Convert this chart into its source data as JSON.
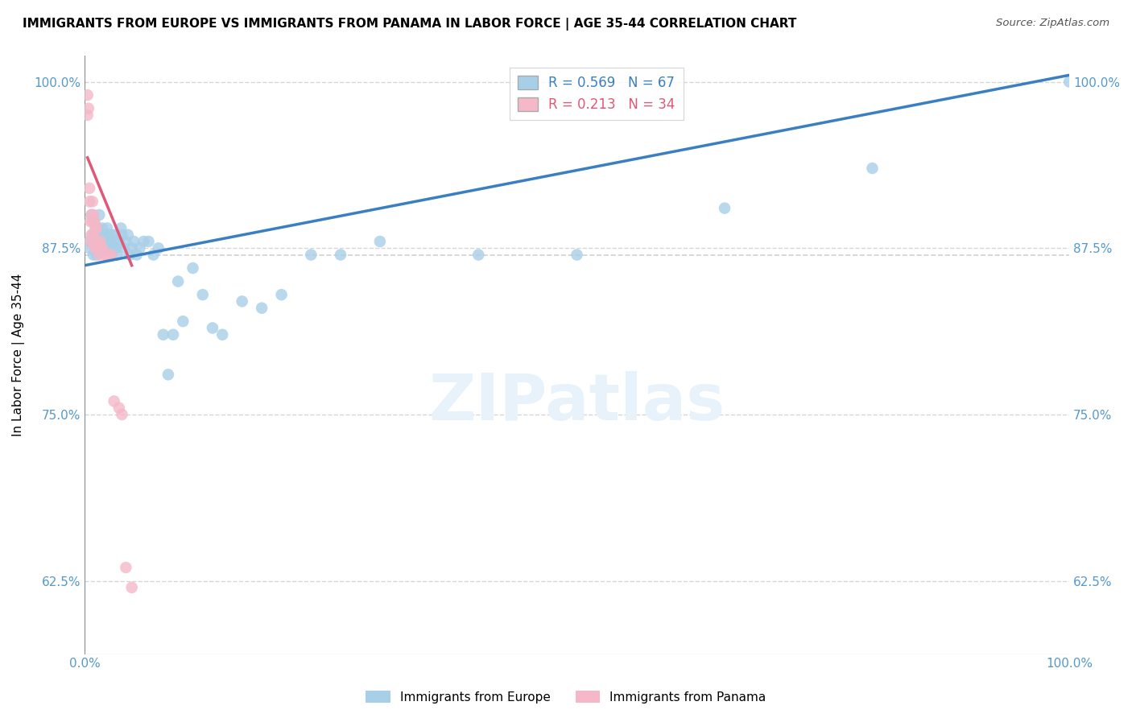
{
  "title": "IMMIGRANTS FROM EUROPE VS IMMIGRANTS FROM PANAMA IN LABOR FORCE | AGE 35-44 CORRELATION CHART",
  "source": "Source: ZipAtlas.com",
  "ylabel": "In Labor Force | Age 35-44",
  "xlim": [
    0.0,
    1.0
  ],
  "ylim": [
    0.57,
    1.02
  ],
  "ytick_positions": [
    0.625,
    0.75,
    0.875,
    1.0
  ],
  "ytick_labels": [
    "62.5%",
    "75.0%",
    "87.5%",
    "100.0%"
  ],
  "legend_europe_label": "Immigrants from Europe",
  "legend_panama_label": "Immigrants from Panama",
  "europe_R": "0.569",
  "europe_N": "67",
  "panama_R": "0.213",
  "panama_N": "34",
  "europe_color": "#a8cfe8",
  "panama_color": "#f4b8c8",
  "europe_line_color": "#3a7fc1",
  "panama_line_color": "#e05878",
  "background_color": "#ffffff",
  "grid_color": "#cccccc",
  "europe_scatter_x": [
    0.005,
    0.005,
    0.007,
    0.008,
    0.009,
    0.01,
    0.01,
    0.011,
    0.012,
    0.012,
    0.013,
    0.014,
    0.015,
    0.015,
    0.016,
    0.017,
    0.018,
    0.019,
    0.02,
    0.02,
    0.021,
    0.022,
    0.023,
    0.024,
    0.025,
    0.026,
    0.027,
    0.028,
    0.03,
    0.031,
    0.032,
    0.033,
    0.035,
    0.037,
    0.038,
    0.04,
    0.042,
    0.044,
    0.046,
    0.048,
    0.05,
    0.053,
    0.056,
    0.06,
    0.065,
    0.07,
    0.075,
    0.08,
    0.085,
    0.09,
    0.095,
    0.1,
    0.11,
    0.12,
    0.13,
    0.14,
    0.16,
    0.18,
    0.2,
    0.23,
    0.26,
    0.3,
    0.4,
    0.5,
    0.65,
    0.8,
    1.0
  ],
  "europe_scatter_y": [
    0.88,
    0.875,
    0.9,
    0.885,
    0.87,
    0.895,
    0.88,
    0.875,
    0.885,
    0.87,
    0.89,
    0.875,
    0.9,
    0.885,
    0.875,
    0.88,
    0.89,
    0.875,
    0.885,
    0.875,
    0.88,
    0.875,
    0.89,
    0.885,
    0.875,
    0.88,
    0.885,
    0.875,
    0.88,
    0.885,
    0.875,
    0.87,
    0.88,
    0.89,
    0.885,
    0.875,
    0.88,
    0.885,
    0.87,
    0.875,
    0.88,
    0.87,
    0.875,
    0.88,
    0.88,
    0.87,
    0.875,
    0.81,
    0.78,
    0.81,
    0.85,
    0.82,
    0.86,
    0.84,
    0.815,
    0.81,
    0.835,
    0.83,
    0.84,
    0.87,
    0.87,
    0.88,
    0.87,
    0.87,
    0.905,
    0.935,
    1.0
  ],
  "panama_scatter_x": [
    0.003,
    0.003,
    0.004,
    0.005,
    0.005,
    0.006,
    0.006,
    0.007,
    0.007,
    0.008,
    0.008,
    0.009,
    0.009,
    0.01,
    0.01,
    0.011,
    0.011,
    0.012,
    0.012,
    0.013,
    0.014,
    0.015,
    0.016,
    0.017,
    0.018,
    0.02,
    0.022,
    0.024,
    0.027,
    0.03,
    0.035,
    0.038,
    0.042,
    0.048
  ],
  "panama_scatter_y": [
    0.99,
    0.975,
    0.98,
    0.92,
    0.91,
    0.895,
    0.88,
    0.9,
    0.885,
    0.91,
    0.895,
    0.9,
    0.885,
    0.895,
    0.88,
    0.89,
    0.875,
    0.89,
    0.875,
    0.88,
    0.875,
    0.87,
    0.88,
    0.875,
    0.875,
    0.87,
    0.87,
    0.87,
    0.87,
    0.76,
    0.755,
    0.75,
    0.635,
    0.62
  ],
  "europe_trendline_x": [
    0.0,
    1.0
  ],
  "europe_trendline_y": [
    0.862,
    1.005
  ],
  "panama_trendline_x": [
    0.003,
    0.048
  ],
  "panama_trendline_y": [
    0.943,
    0.862
  ]
}
